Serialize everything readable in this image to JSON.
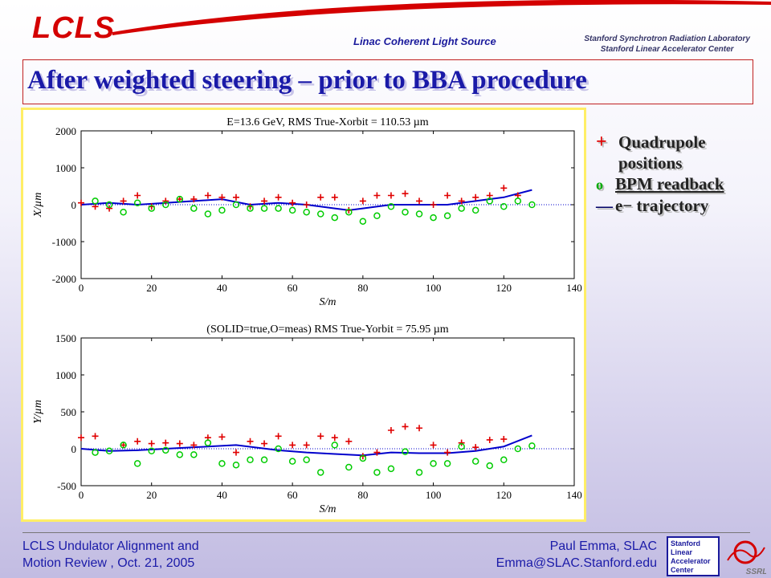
{
  "header": {
    "logo_text": "LCLS",
    "subtitle": "Linac Coherent Light Source",
    "org_line1": "Stanford Synchrotron Radiation Laboratory",
    "org_line2": "Stanford Linear Accelerator Center"
  },
  "slide_title": "After weighted steering – prior to BBA procedure",
  "legend": {
    "quad_label_1": "Quadrupole",
    "quad_label_2": "positions",
    "bpm_label": "BPM readback",
    "traj_label": "e− trajectory",
    "quad_symbol": "+",
    "bpm_symbol": "o",
    "traj_symbol": "—",
    "quad_color": "#e00000",
    "bpm_color": "#00cc00",
    "traj_color": "#0000cc"
  },
  "footer": {
    "left_line1": "LCLS Undulator Alignment and",
    "left_line2": "Motion Review , Oct. 21, 2005",
    "right_line1": "Paul Emma, SLAC",
    "right_line2": "Emma@SLAC.Stanford.edu",
    "slac_logo": "Stanford Linear Accelerator Center",
    "ssrl_logo": "SSRL"
  },
  "chart_data": [
    {
      "type": "scatter",
      "title": "E=13.6 GeV, RMS True-Xorbit =  110.53 µm",
      "xlabel": "S/m",
      "ylabel": "X/µm",
      "xlim": [
        0,
        140
      ],
      "ylim": [
        -2000,
        2000
      ],
      "xticks": [
        0,
        20,
        40,
        60,
        80,
        100,
        120,
        140
      ],
      "yticks": [
        2000,
        1000,
        0,
        -1000,
        -2000
      ],
      "quad_positions": {
        "x": [
          0,
          4,
          8,
          12,
          16,
          20,
          24,
          28,
          32,
          36,
          40,
          44,
          48,
          52,
          56,
          60,
          64,
          68,
          72,
          76,
          80,
          84,
          88,
          92,
          96,
          100,
          104,
          108,
          112,
          116,
          120,
          124
        ],
        "y": [
          50,
          -50,
          -100,
          100,
          250,
          -50,
          100,
          150,
          150,
          250,
          200,
          200,
          -50,
          100,
          200,
          50,
          0,
          200,
          200,
          -150,
          100,
          250,
          250,
          300,
          100,
          0,
          250,
          100,
          200,
          250,
          450,
          250
        ]
      },
      "bpm_readback": {
        "x": [
          4,
          8,
          12,
          16,
          20,
          24,
          28,
          32,
          36,
          40,
          44,
          48,
          52,
          56,
          60,
          64,
          68,
          72,
          76,
          80,
          84,
          88,
          92,
          96,
          100,
          104,
          108,
          112,
          116,
          120,
          124,
          128
        ],
        "y": [
          100,
          0,
          -200,
          50,
          -100,
          0,
          150,
          -100,
          -250,
          -150,
          0,
          -100,
          -100,
          -100,
          -150,
          -200,
          -250,
          -350,
          -200,
          -450,
          -300,
          -50,
          -200,
          -250,
          -350,
          -300,
          -100,
          -150,
          100,
          -50,
          100,
          0
        ]
      },
      "trajectory": {
        "x": [
          0,
          8,
          16,
          24,
          32,
          40,
          48,
          56,
          64,
          72,
          76,
          80,
          88,
          96,
          104,
          112,
          120,
          128
        ],
        "y": [
          0,
          50,
          0,
          50,
          100,
          150,
          0,
          50,
          0,
          -100,
          -150,
          -100,
          0,
          0,
          0,
          100,
          200,
          400
        ]
      }
    },
    {
      "type": "scatter",
      "title": "(SOLID=true,O=meas) RMS True-Yorbit =  75.95 µm",
      "xlabel": "S/m",
      "ylabel": "Y/µm",
      "xlim": [
        0,
        140
      ],
      "ylim": [
        -500,
        1500
      ],
      "xticks": [
        0,
        20,
        40,
        60,
        80,
        100,
        120,
        140
      ],
      "yticks": [
        1500,
        1000,
        500,
        0,
        -500
      ],
      "quad_positions": {
        "x": [
          0,
          4,
          12,
          16,
          20,
          24,
          28,
          32,
          36,
          40,
          44,
          48,
          52,
          56,
          60,
          64,
          68,
          72,
          76,
          80,
          84,
          88,
          92,
          96,
          100,
          104,
          108,
          112,
          116,
          120
        ],
        "y": [
          150,
          170,
          50,
          100,
          70,
          80,
          70,
          50,
          150,
          160,
          -50,
          100,
          70,
          170,
          50,
          50,
          170,
          150,
          100,
          -100,
          -50,
          250,
          300,
          280,
          50,
          -50,
          80,
          20,
          120,
          130
        ]
      },
      "bpm_readback": {
        "x": [
          4,
          8,
          12,
          16,
          20,
          24,
          28,
          32,
          36,
          40,
          44,
          48,
          52,
          56,
          60,
          64,
          68,
          72,
          76,
          80,
          84,
          88,
          92,
          96,
          100,
          104,
          108,
          112,
          116,
          120,
          124,
          128
        ],
        "y": [
          -50,
          -30,
          50,
          -200,
          -30,
          -20,
          -80,
          -80,
          80,
          -200,
          -220,
          -150,
          -150,
          0,
          -170,
          -150,
          -320,
          50,
          -250,
          -130,
          -320,
          -270,
          -40,
          -320,
          -200,
          -200,
          30,
          -170,
          -230,
          -150,
          0,
          40
        ]
      },
      "trajectory": {
        "x": [
          0,
          8,
          16,
          24,
          32,
          44,
          56,
          64,
          72,
          80,
          88,
          96,
          104,
          112,
          120,
          128
        ],
        "y": [
          0,
          -30,
          -20,
          0,
          20,
          50,
          -20,
          -50,
          -70,
          -90,
          -50,
          -60,
          -60,
          -30,
          30,
          180
        ]
      }
    }
  ]
}
